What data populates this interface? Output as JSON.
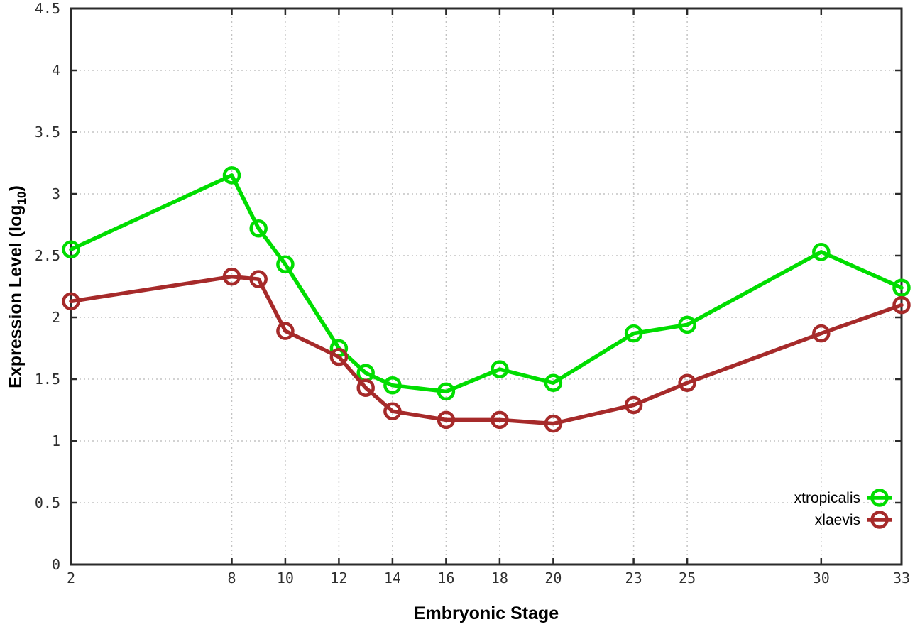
{
  "chart_data": {
    "type": "line",
    "title": "",
    "xlabel": "Embryonic Stage",
    "ylabel": {
      "main": "Expression Level (log",
      "sub": "10",
      "end": ")"
    },
    "x": [
      2,
      8,
      9,
      10,
      12,
      13,
      14,
      16,
      18,
      20,
      23,
      25,
      30,
      33
    ],
    "series": [
      {
        "name": "xtropicalis",
        "color": "#00dd00",
        "values": [
          2.55,
          3.15,
          2.72,
          2.43,
          1.75,
          1.55,
          1.45,
          1.4,
          1.58,
          1.47,
          1.87,
          1.94,
          2.53,
          2.24
        ]
      },
      {
        "name": "xlaevis",
        "color": "#a62a2a",
        "values": [
          2.13,
          2.33,
          2.31,
          1.89,
          1.68,
          1.43,
          1.24,
          1.17,
          1.17,
          1.14,
          1.29,
          1.47,
          1.87,
          2.1
        ]
      }
    ],
    "x_ticks": [
      2,
      8,
      10,
      12,
      14,
      16,
      18,
      20,
      23,
      25,
      30,
      33
    ],
    "y_ticks": [
      0,
      0.5,
      1,
      1.5,
      2,
      2.5,
      3,
      3.5,
      4,
      4.5
    ],
    "xlim": [
      2,
      33
    ],
    "ylim": [
      0,
      4.5
    ],
    "grid": true,
    "legend_position": "bottom-right",
    "marker": "open-circle",
    "colors": {
      "grid": "#c3c3c3",
      "axis": "#2b2b2b",
      "tick_text": "#2e2e2e",
      "title_text": "#000000",
      "background": "#ffffff"
    }
  }
}
